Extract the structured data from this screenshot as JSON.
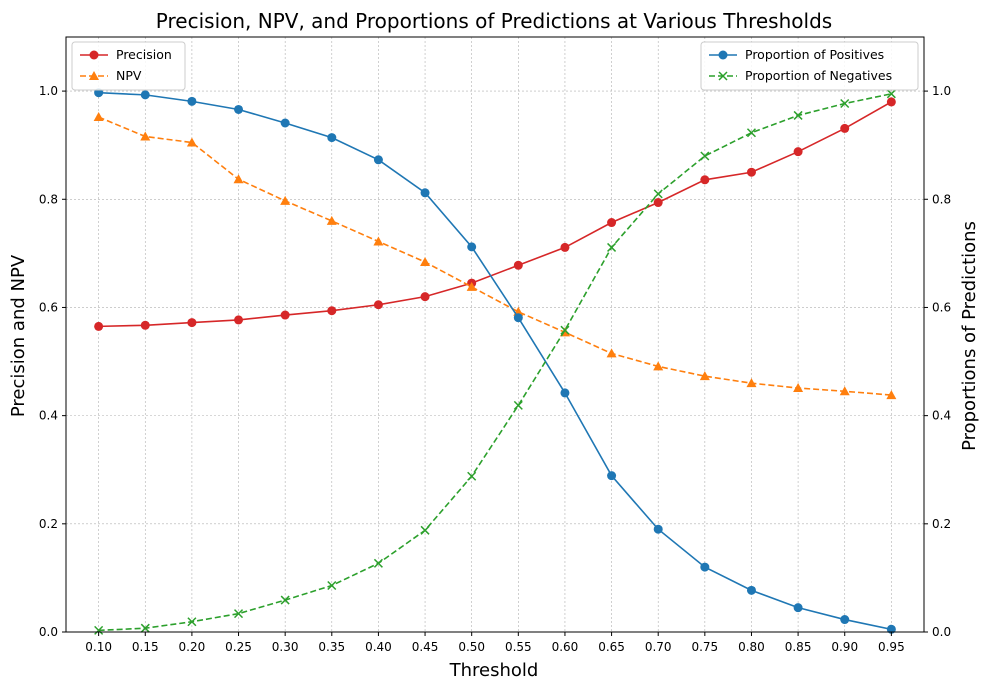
{
  "chart_data": {
    "type": "line",
    "title": "Precision, NPV, and Proportions of Predictions at Various Thresholds",
    "xlabel": "Threshold",
    "ylabel_left": "Precision and NPV",
    "ylabel_right": "Proportions of Predictions",
    "x": [
      0.1,
      0.15,
      0.2,
      0.25,
      0.3,
      0.35,
      0.4,
      0.45,
      0.5,
      0.55,
      0.6,
      0.65,
      0.7,
      0.75,
      0.8,
      0.85,
      0.9,
      0.95
    ],
    "x_tick_labels": [
      "0.10",
      "0.15",
      "0.20",
      "0.25",
      "0.30",
      "0.35",
      "0.40",
      "0.45",
      "0.50",
      "0.55",
      "0.60",
      "0.65",
      "0.70",
      "0.75",
      "0.80",
      "0.85",
      "0.90",
      "0.95"
    ],
    "xlim": [
      0.065,
      0.985
    ],
    "ylim_left": [
      0.0,
      1.1
    ],
    "ylim_right": [
      0.0,
      1.1
    ],
    "y_ticks_left": [
      "0.0",
      "0.2",
      "0.4",
      "0.6",
      "0.8",
      "1.0"
    ],
    "y_ticks_right": [
      "0.0",
      "0.2",
      "0.4",
      "0.6",
      "0.8",
      "1.0"
    ],
    "grid": true,
    "series": [
      {
        "name": "Precision",
        "axis": "left",
        "color": "#d62728",
        "marker": "circle",
        "dashed": false,
        "values": [
          0.565,
          0.567,
          0.572,
          0.577,
          0.586,
          0.594,
          0.605,
          0.62,
          0.645,
          0.678,
          0.711,
          0.757,
          0.794,
          0.836,
          0.85,
          0.888,
          0.931,
          0.98
        ]
      },
      {
        "name": "NPV",
        "axis": "left",
        "color": "#ff7f0e",
        "marker": "triangle",
        "dashed": true,
        "values": [
          0.952,
          0.916,
          0.905,
          0.837,
          0.797,
          0.76,
          0.722,
          0.684,
          0.638,
          0.592,
          0.554,
          0.515,
          0.491,
          0.473,
          0.46,
          0.451,
          0.445,
          0.438
        ]
      },
      {
        "name": "Proportion of Positives",
        "axis": "right",
        "color": "#1f77b4",
        "marker": "circle",
        "dashed": false,
        "values": [
          0.997,
          0.993,
          0.981,
          0.966,
          0.941,
          0.914,
          0.873,
          0.812,
          0.712,
          0.581,
          0.442,
          0.289,
          0.19,
          0.12,
          0.077,
          0.045,
          0.023,
          0.005
        ]
      },
      {
        "name": "Proportion of Negatives",
        "axis": "right",
        "color": "#2ca02c",
        "marker": "x",
        "dashed": true,
        "values": [
          0.003,
          0.007,
          0.019,
          0.034,
          0.059,
          0.086,
          0.127,
          0.188,
          0.288,
          0.419,
          0.558,
          0.711,
          0.81,
          0.88,
          0.923,
          0.955,
          0.977,
          0.995
        ]
      }
    ],
    "legends": [
      {
        "placement": "upper-left",
        "series": [
          "Precision",
          "NPV"
        ]
      },
      {
        "placement": "upper-right",
        "series": [
          "Proportion of Positives",
          "Proportion of Negatives"
        ]
      }
    ]
  }
}
